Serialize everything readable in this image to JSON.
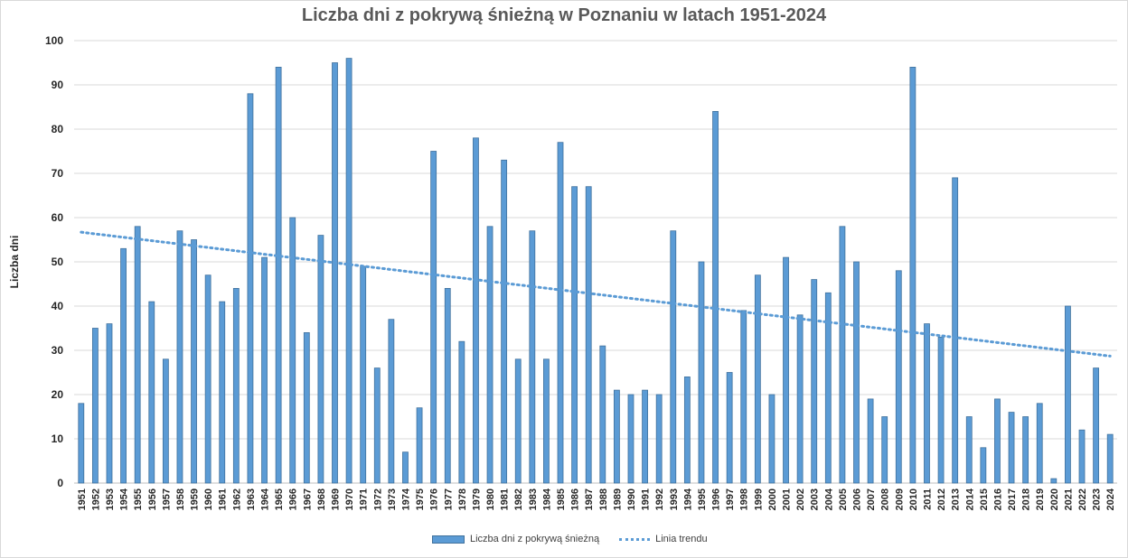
{
  "chart_data": {
    "type": "bar",
    "title": "Liczba dni z pokrywą śnieżną w Poznaniu w latach 1951-2024",
    "ylabel": "Liczba dni",
    "xlabel": "",
    "ylim": [
      0,
      100
    ],
    "yticks": [
      0,
      10,
      20,
      30,
      40,
      50,
      60,
      70,
      80,
      90,
      100
    ],
    "grid": true,
    "legend_position": "bottom",
    "categories": [
      "1951",
      "1952",
      "1953",
      "1954",
      "1955",
      "1956",
      "1957",
      "1958",
      "1959",
      "1960",
      "1961",
      "1962",
      "1963",
      "1964",
      "1965",
      "1966",
      "1967",
      "1968",
      "1969",
      "1970",
      "1971",
      "1972",
      "1973",
      "1974",
      "1975",
      "1976",
      "1977",
      "1978",
      "1979",
      "1980",
      "1981",
      "1982",
      "1983",
      "1984",
      "1985",
      "1986",
      "1987",
      "1988",
      "1989",
      "1990",
      "1991",
      "1992",
      "1993",
      "1994",
      "1995",
      "1996",
      "1997",
      "1998",
      "1999",
      "2000",
      "2001",
      "2002",
      "2003",
      "2004",
      "2005",
      "2006",
      "2007",
      "2008",
      "2009",
      "2010",
      "2011",
      "2012",
      "2013",
      "2014",
      "2015",
      "2016",
      "2017",
      "2018",
      "2019",
      "2020",
      "2021",
      "2022",
      "2023",
      "2024"
    ],
    "series": [
      {
        "name": "Liczba dni z pokrywą śnieżną",
        "color": "#5b9bd5",
        "values": [
          18,
          35,
          36,
          53,
          58,
          41,
          28,
          57,
          55,
          47,
          41,
          44,
          88,
          51,
          94,
          60,
          34,
          56,
          95,
          96,
          49,
          26,
          37,
          7,
          17,
          75,
          44,
          32,
          78,
          58,
          73,
          28,
          57,
          28,
          77,
          67,
          67,
          31,
          21,
          20,
          21,
          20,
          57,
          24,
          50,
          84,
          25,
          39,
          47,
          20,
          51,
          38,
          46,
          43,
          58,
          50,
          19,
          15,
          48,
          94,
          36,
          33,
          69,
          15,
          8,
          19,
          16,
          15,
          18,
          1,
          40,
          12,
          26,
          11
        ]
      }
    ],
    "trend": {
      "name": "Linia trendu",
      "color": "#5b9bd5",
      "start": 56.7,
      "end": 28.7
    }
  }
}
